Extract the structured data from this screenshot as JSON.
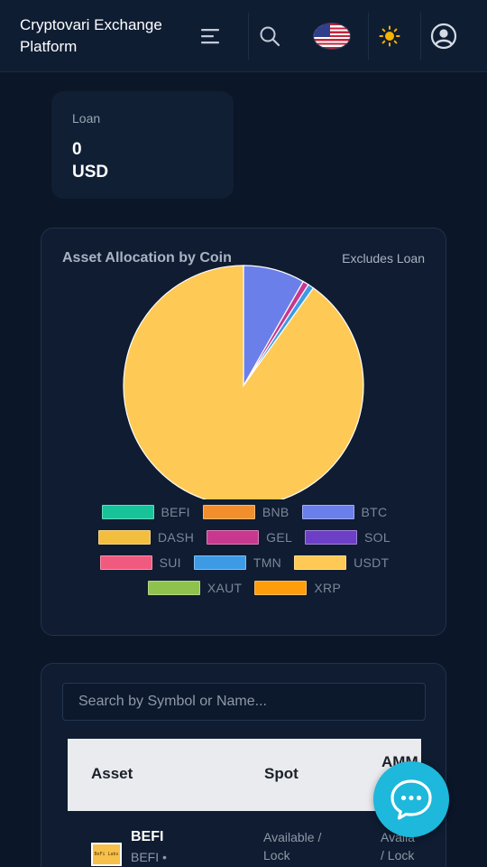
{
  "header": {
    "title": "Cryptovari Exchange Platform",
    "icons": [
      "menu-icon",
      "search-icon",
      "us-flag-icon",
      "sun-icon",
      "user-icon"
    ]
  },
  "loan": {
    "label": "Loan",
    "value": "0",
    "unit": "USD"
  },
  "allocation": {
    "title": "Asset Allocation by Coin",
    "note": "Excludes Loan",
    "legend": [
      {
        "label": "BEFI",
        "color": "#19c39a"
      },
      {
        "label": "BNB",
        "color": "#f28f2c"
      },
      {
        "label": "BTC",
        "color": "#6a7fea"
      },
      {
        "label": "DASH",
        "color": "#f3bd3e"
      },
      {
        "label": "GEL",
        "color": "#c8388f"
      },
      {
        "label": "SOL",
        "color": "#6d3fc6"
      },
      {
        "label": "SUI",
        "color": "#f05a7e"
      },
      {
        "label": "TMN",
        "color": "#3d9be6"
      },
      {
        "label": "USDT",
        "color": "#ffc955"
      },
      {
        "label": "XAUT",
        "color": "#8fc24c"
      },
      {
        "label": "XRP",
        "color": "#ff9d0a"
      }
    ]
  },
  "chart_data": {
    "type": "pie",
    "title": "Asset Allocation by Coin",
    "subtitle": "Excludes Loan",
    "legend_placement": "bottom",
    "slices": [
      {
        "label": "BEFI",
        "value": 0
      },
      {
        "label": "BNB",
        "value": 0
      },
      {
        "label": "BTC",
        "value": 8.3
      },
      {
        "label": "DASH",
        "value": 0
      },
      {
        "label": "GEL",
        "value": 0.8
      },
      {
        "label": "SOL",
        "value": 0
      },
      {
        "label": "SUI",
        "value": 0
      },
      {
        "label": "TMN",
        "value": 0.8
      },
      {
        "label": "USDT",
        "value": 90.1
      },
      {
        "label": "XAUT",
        "value": 0
      },
      {
        "label": "XRP",
        "value": 0
      }
    ]
  },
  "assets": {
    "search_placeholder": "Search by Symbol or Name...",
    "columns": [
      "Asset",
      "Spot",
      "AMM"
    ],
    "rows": [
      {
        "logo_text": "BeFi Labs",
        "name": "BEFI",
        "sub": "BEFI •",
        "spot_line1": "Available /",
        "spot_line2": "Lock",
        "amm_line1": "Availa",
        "amm_line2": "/ Lock"
      }
    ]
  },
  "chat": {
    "icon": "chat-bubble-icon"
  }
}
